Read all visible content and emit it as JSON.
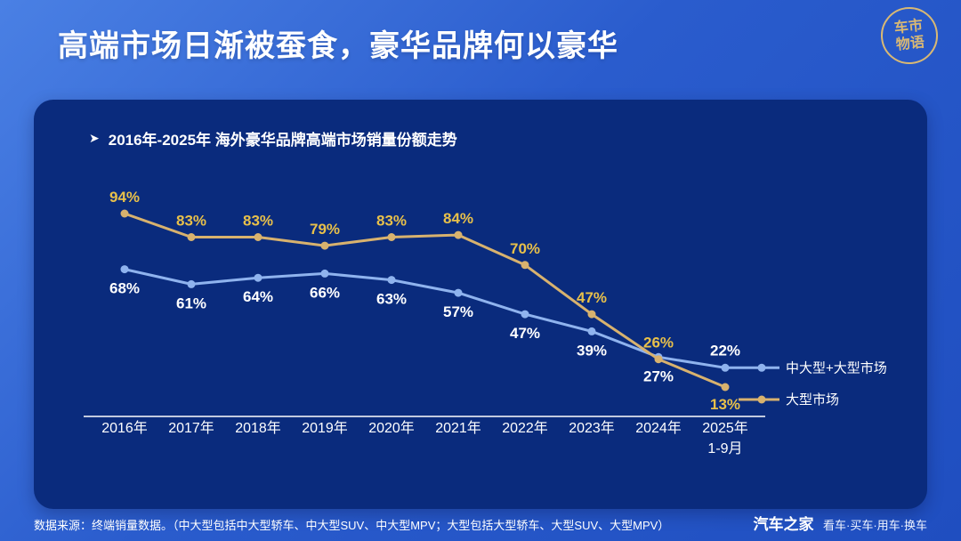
{
  "header": {
    "title": "高端市场日渐被蚕食，豪华品牌何以豪华"
  },
  "logo": {
    "line1": "车市",
    "line2": "物语"
  },
  "chart_header": {
    "arrow": "➤",
    "title": "2016年-2025年 海外豪华品牌高端市场销量份额走势"
  },
  "chart_data": {
    "type": "line",
    "title": "2016年-2025年 海外豪华品牌高端市场销量份额走势",
    "categories": [
      "2016年",
      "2017年",
      "2018年",
      "2019年",
      "2020年",
      "2021年",
      "2022年",
      "2023年",
      "2024年",
      "2025年"
    ],
    "sub_labels": [
      "",
      "",
      "",
      "",
      "",
      "",
      "",
      "",
      "",
      "1-9月"
    ],
    "series": [
      {
        "name": "中大型+大型市场",
        "color": "#8fb3ee",
        "label_color": "#ffffff",
        "values": [
          68,
          61,
          64,
          66,
          63,
          57,
          47,
          39,
          27,
          22
        ]
      },
      {
        "name": "大型市场",
        "color": "#d8b26e",
        "label_color": "#e8c04a",
        "values": [
          94,
          83,
          83,
          79,
          83,
          84,
          70,
          47,
          26,
          13
        ]
      }
    ],
    "ylabel": "",
    "xlabel": "",
    "unit": "%",
    "grid": false,
    "legend_position": "right",
    "background_color": "#0a2b7d"
  },
  "footer": {
    "source_note": "数据来源：终端销量数据。（中大型包括中大型轿车、中大型SUV、中大型MPV；大型包括大型轿车、大型SUV、大型MPV）",
    "brand": "汽车之家",
    "brand_tagline": "看车·买车·用车·换车"
  }
}
